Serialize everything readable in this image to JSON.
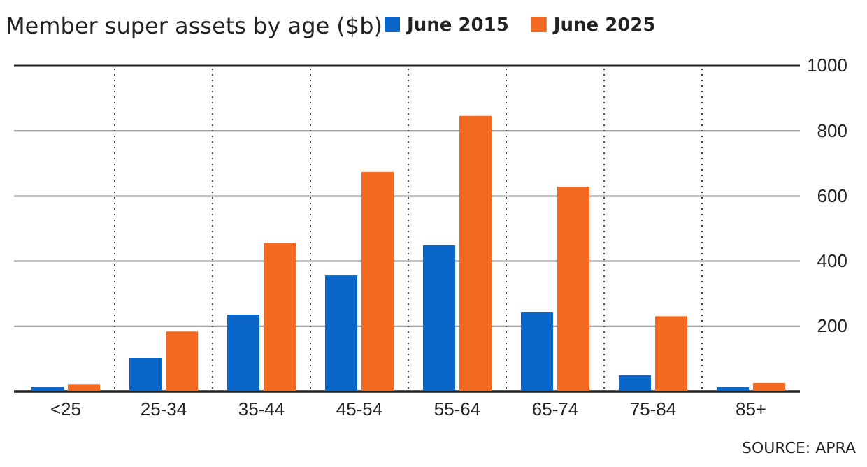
{
  "chart_data": {
    "type": "bar",
    "title": "Member super assets by age ($b)",
    "categories": [
      "<25",
      "25-34",
      "35-44",
      "45-54",
      "55-64",
      "65-74",
      "75-84",
      "85+"
    ],
    "series": [
      {
        "name": "June 2015",
        "color": "#0a67c9",
        "values": [
          14,
          103,
          236,
          356,
          449,
          243,
          50,
          13
        ]
      },
      {
        "name": "June 2025",
        "color": "#f26a21",
        "values": [
          23,
          184,
          456,
          674,
          846,
          629,
          231,
          26
        ]
      }
    ],
    "ylim": [
      0,
      1000
    ],
    "yticks": [
      {
        "value": 0,
        "label": null
      },
      200,
      400,
      600,
      800,
      1000
    ],
    "grid": true,
    "legend": "top",
    "annotations": [
      "SOURCE: APRA"
    ]
  }
}
